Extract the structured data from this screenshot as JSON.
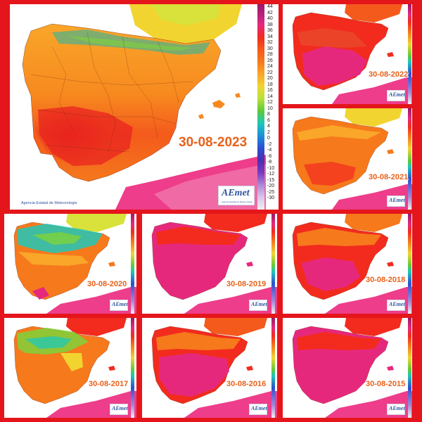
{
  "colors": {
    "frame": "#e4161b",
    "hot_extreme": "#e6287d",
    "hot": "#f22b1e",
    "warm": "#f6791c",
    "mild": "#f9a629",
    "cool_yellow": "#f2d430",
    "green": "#7fd23a",
    "teal": "#1ec8b8",
    "sea_magenta": "#f03a8c",
    "date_text": "#e8611a",
    "brand_blue": "#2e54a0"
  },
  "legend": {
    "ticks": [
      "44",
      "42",
      "40",
      "38",
      "36",
      "34",
      "32",
      "30",
      "28",
      "26",
      "24",
      "22",
      "20",
      "18",
      "16",
      "14",
      "12",
      "10",
      "8",
      "6",
      "4",
      "2",
      "0",
      "-2",
      "-4",
      "-6",
      "-8",
      "-10",
      "-12",
      "-15",
      "-20",
      "-25",
      "-30"
    ]
  },
  "branding": {
    "logo_text": "AEmet",
    "logo_subtitle": "Agencia Estatal de Meteorología",
    "agency_label": "Agencia Estatal de Meteorología"
  },
  "panels": [
    {
      "date": "30-08-2023"
    },
    {
      "date": "30-08-2022"
    },
    {
      "date": "30-08-2021"
    },
    {
      "date": "30-08-2020"
    },
    {
      "date": "30-08-2019"
    },
    {
      "date": "30-08-2018"
    },
    {
      "date": "30-08-2017"
    },
    {
      "date": "30-08-2016"
    },
    {
      "date": "30-08-2015"
    }
  ]
}
